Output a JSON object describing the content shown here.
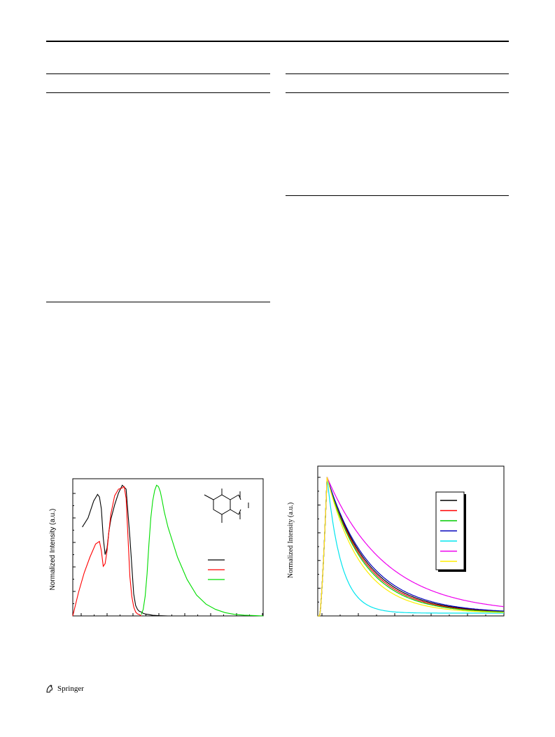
{
  "footer": {
    "publisher": "Springer",
    "logo_icon": "springer-horse-icon"
  },
  "chart_data": [
    {
      "type": "line",
      "title": "",
      "xlabel": "",
      "ylabel": "Normalized Intensity (a.u.)",
      "xlim": [
        0,
        100
      ],
      "ylim": [
        0,
        1.05
      ],
      "grid": false,
      "legend_placement": "center-right",
      "series": [
        {
          "color": "#000000",
          "x": [
            5,
            8,
            11,
            13,
            14,
            15,
            16,
            17,
            18,
            19,
            20,
            22,
            24,
            26,
            28,
            30,
            32,
            33,
            34,
            35,
            36,
            37,
            38,
            40,
            42,
            45,
            50
          ],
          "values": [
            0.68,
            0.75,
            0.88,
            0.93,
            0.91,
            0.82,
            0.6,
            0.47,
            0.52,
            0.65,
            0.74,
            0.85,
            0.94,
            1.0,
            0.97,
            0.6,
            0.17,
            0.08,
            0.05,
            0.035,
            0.03,
            0.02,
            0.015,
            0.01,
            0.005,
            0.002,
            0.0
          ]
        },
        {
          "color": "#ff0000",
          "x": [
            0,
            3,
            6,
            9,
            12,
            14,
            15,
            16,
            17,
            18,
            19,
            20,
            22,
            24,
            26,
            27,
            28,
            29,
            30,
            31,
            32,
            33,
            34,
            35,
            36
          ],
          "values": [
            0.0,
            0.18,
            0.33,
            0.45,
            0.55,
            0.57,
            0.5,
            0.38,
            0.4,
            0.5,
            0.65,
            0.78,
            0.92,
            0.97,
            0.98,
            0.99,
            0.9,
            0.6,
            0.3,
            0.15,
            0.07,
            0.03,
            0.015,
            0.01,
            0.0
          ]
        },
        {
          "color": "#00dd00",
          "x": [
            36,
            37,
            38,
            39,
            40,
            41,
            42,
            43,
            44,
            45,
            46,
            47,
            48,
            50,
            55,
            60,
            65,
            70,
            75,
            80,
            85,
            90,
            95,
            100
          ],
          "values": [
            0.01,
            0.05,
            0.15,
            0.32,
            0.55,
            0.75,
            0.88,
            0.96,
            1.0,
            0.99,
            0.95,
            0.88,
            0.8,
            0.68,
            0.45,
            0.28,
            0.16,
            0.09,
            0.05,
            0.025,
            0.012,
            0.006,
            0.003,
            0.0
          ]
        }
      ],
      "inset_icon": "molecular-structure-icon"
    },
    {
      "type": "line",
      "title": "",
      "xlabel": "",
      "ylabel": "Normalized Intensity (a.u.)",
      "xlim": [
        0,
        100
      ],
      "ylim": [
        0,
        1.08
      ],
      "grid": false,
      "legend_placement": "top-right",
      "series": [
        {
          "color": "#000000",
          "decay": 0.046
        },
        {
          "color": "#ff0000",
          "decay": 0.048
        },
        {
          "color": "#00cc00",
          "decay": 0.05
        },
        {
          "color": "#0000bb",
          "decay": 0.044
        },
        {
          "color": "#00e5ee",
          "decay": 0.13
        },
        {
          "color": "#ee00ee",
          "decay": 0.032
        },
        {
          "color": "#ffee00",
          "decay": 0.055
        }
      ]
    }
  ]
}
